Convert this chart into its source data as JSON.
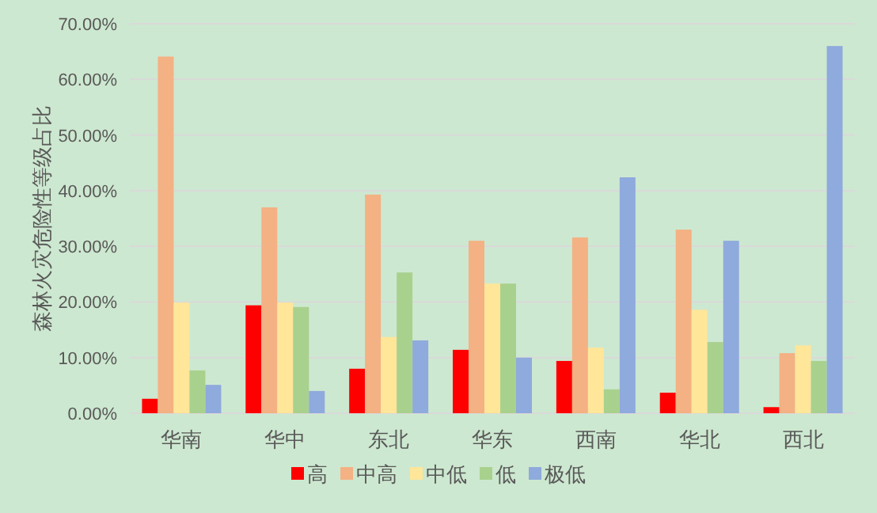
{
  "chart_data": {
    "type": "bar",
    "ylabel": "森林火灾危险性等级占比",
    "categories": [
      "华南",
      "华中",
      "东北",
      "华东",
      "西南",
      "华北",
      "西北"
    ],
    "series": [
      {
        "name": "高",
        "color": "#ff0000",
        "values": [
          2.6,
          19.4,
          8.0,
          11.4,
          9.4,
          3.7,
          1.1
        ]
      },
      {
        "name": "中高",
        "color": "#f4b183",
        "values": [
          64.1,
          37.0,
          39.3,
          31.0,
          31.6,
          33.0,
          10.8
        ]
      },
      {
        "name": "中低",
        "color": "#ffe699",
        "values": [
          19.9,
          19.9,
          13.7,
          23.3,
          11.8,
          18.6,
          12.2
        ]
      },
      {
        "name": "低",
        "color": "#a9d18e",
        "values": [
          7.7,
          19.1,
          25.3,
          23.3,
          4.3,
          12.8,
          9.4
        ]
      },
      {
        "name": "极低",
        "color": "#8faadc",
        "values": [
          5.1,
          4.0,
          13.1,
          10.0,
          42.4,
          31.0,
          66.0
        ]
      }
    ],
    "ylim": [
      0,
      70
    ],
    "yticks": [
      {
        "value": 0,
        "label": "0.00%"
      },
      {
        "value": 10,
        "label": "10.00%"
      },
      {
        "value": 20,
        "label": "20.00%"
      },
      {
        "value": 30,
        "label": "30.00%"
      },
      {
        "value": 40,
        "label": "40.00%"
      },
      {
        "value": 50,
        "label": "50.00%"
      },
      {
        "value": 60,
        "label": "60.00%"
      },
      {
        "value": 70,
        "label": "70.00%"
      }
    ],
    "grid": "y",
    "legend": "bottom"
  }
}
